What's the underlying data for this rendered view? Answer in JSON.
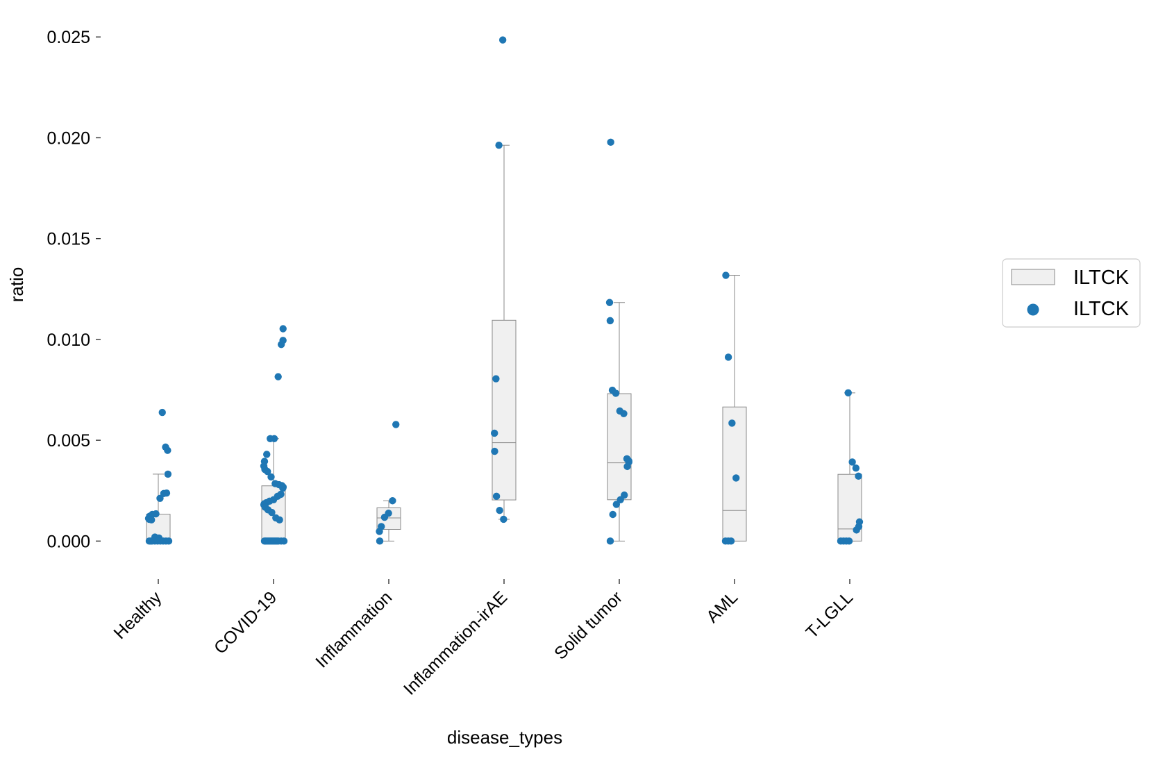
{
  "chart_data": {
    "type": "box",
    "title": "",
    "xlabel": "disease_types",
    "ylabel": "ratio",
    "ylim": [
      -0.0014,
      0.0258
    ],
    "yticks": [
      "0.000",
      "0.005",
      "0.010",
      "0.015",
      "0.020",
      "0.025"
    ],
    "ytick_values": [
      0,
      0.005,
      0.01,
      0.015,
      0.02,
      0.025
    ],
    "categories": [
      "Healthy",
      "COVID-19",
      "Inflammation",
      "Inflammation-irAE",
      "Solid tumor",
      "AML",
      "T-LGLL"
    ],
    "grid": false,
    "legend_position": "right",
    "legend": [
      {
        "kind": "box",
        "label": "ILTCK"
      },
      {
        "kind": "point",
        "label": "ILTCK"
      }
    ],
    "colors": {
      "point": "#1f77b4",
      "box_fill": "#f0f0f0",
      "box_edge": "#8a8a8a"
    },
    "boxes": [
      {
        "category": "Healthy",
        "q1": 0.0,
        "median": 0.0001,
        "q3": 0.00133,
        "whisker_low": 0.0,
        "whisker_high": 0.00332
      },
      {
        "category": "COVID-19",
        "q1": 0.0,
        "median": 0.0,
        "q3": 0.00274,
        "whisker_low": 0.0,
        "whisker_high": 0.00508
      },
      {
        "category": "Inflammation",
        "q1": 0.00058,
        "median": 0.00115,
        "q3": 0.00165,
        "whisker_low": 0.0,
        "whisker_high": 0.002
      },
      {
        "category": "Inflammation-irAE",
        "q1": 0.00204,
        "median": 0.00488,
        "q3": 0.01095,
        "whisker_low": 0.00108,
        "whisker_high": 0.01963
      },
      {
        "category": "Solid tumor",
        "q1": 0.00205,
        "median": 0.00388,
        "q3": 0.00731,
        "whisker_low": 0.0,
        "whisker_high": 0.01183
      },
      {
        "category": "AML",
        "q1": 0.0,
        "median": 0.00152,
        "q3": 0.00665,
        "whisker_low": 0.0,
        "whisker_high": 0.01318
      },
      {
        "category": "T-LGLL",
        "q1": 0.0,
        "median": 0.0006,
        "q3": 0.00331,
        "whisker_low": 0.0,
        "whisker_high": 0.00735
      }
    ],
    "points": [
      {
        "category": "Healthy",
        "values": [
          0.00638,
          0.00466,
          0.0045,
          0.00332,
          0.00238,
          0.00236,
          0.00212,
          0.00135,
          0.00132,
          0.00123,
          0.00112,
          0.00108,
          0.00105,
          0.0002,
          0.00015,
          0.0,
          0.0,
          0.0,
          0.0,
          0.0,
          0.0,
          0.0,
          0.0,
          0.0
        ]
      },
      {
        "category": "COVID-19",
        "values": [
          0.01053,
          0.00995,
          0.00975,
          0.00815,
          0.00508,
          0.00508,
          0.0043,
          0.00395,
          0.00372,
          0.00355,
          0.00345,
          0.00318,
          0.00285,
          0.0028,
          0.00275,
          0.00268,
          0.00262,
          0.00232,
          0.00222,
          0.00205,
          0.00198,
          0.0019,
          0.00185,
          0.0018,
          0.00168,
          0.00155,
          0.00142,
          0.00115,
          0.00105,
          0.0,
          0.0,
          0.0,
          0.0,
          0.0,
          0.0,
          0.0,
          0.0,
          0.0,
          0.0,
          0.0,
          0.0,
          0.0
        ]
      },
      {
        "category": "Inflammation",
        "values": [
          0.00578,
          0.002,
          0.00138,
          0.00118,
          0.00072,
          0.00048,
          0.0
        ]
      },
      {
        "category": "Inflammation-irAE",
        "values": [
          0.02485,
          0.01963,
          0.00805,
          0.00535,
          0.00445,
          0.00222,
          0.00152,
          0.00108
        ]
      },
      {
        "category": "Solid tumor",
        "values": [
          0.01978,
          0.01183,
          0.01093,
          0.00748,
          0.00733,
          0.00645,
          0.00632,
          0.00408,
          0.00398,
          0.00392,
          0.0037,
          0.00228,
          0.00205,
          0.00182,
          0.00132,
          0.0
        ]
      },
      {
        "category": "AML",
        "values": [
          0.01318,
          0.00912,
          0.00585,
          0.00313,
          0.0,
          0.0,
          0.0
        ]
      },
      {
        "category": "T-LGLL",
        "values": [
          0.00735,
          0.00392,
          0.00362,
          0.00322,
          0.00095,
          0.00072,
          0.00055,
          0.0,
          0.0,
          0.0,
          0.0
        ]
      }
    ]
  }
}
